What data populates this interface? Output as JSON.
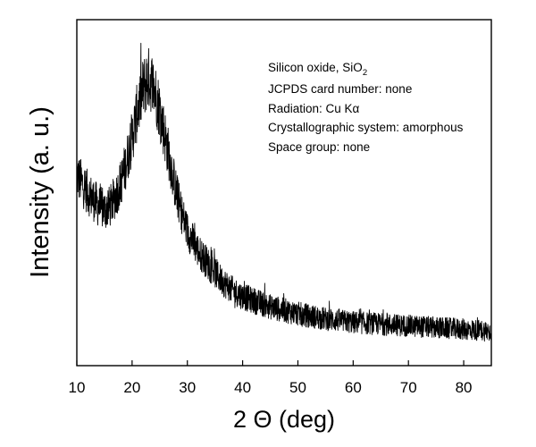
{
  "chart_data": {
    "type": "line",
    "xlabel": "2 Θ (deg)",
    "ylabel": "Intensity (a. u.)",
    "xlim": [
      10,
      85
    ],
    "ylim": [
      0,
      100
    ],
    "x_ticks": [
      10,
      20,
      30,
      40,
      50,
      60,
      70,
      80
    ],
    "y_tick_labels": false,
    "grid": false,
    "legend": "none",
    "annotation_lines": [
      {
        "text": "Silicon oxide, SiO",
        "subscript": "2"
      },
      {
        "text": "JCPDS card number: none"
      },
      {
        "text": "Radiation: Cu Kα"
      },
      {
        "text": "Crystallographic system: amorphous"
      },
      {
        "text": "Space group: none"
      }
    ],
    "series": [
      {
        "x": [
          10,
          12,
          14,
          15,
          16,
          17,
          18,
          19,
          20,
          21,
          22,
          22.5,
          23,
          23.5,
          24,
          25,
          26,
          27,
          28,
          29,
          30,
          32,
          34,
          36,
          38,
          40,
          45,
          50,
          55,
          60,
          65,
          70,
          75,
          80,
          85
        ],
        "y": [
          55,
          50,
          46,
          45,
          46,
          49,
          53,
          59,
          66,
          74,
          80,
          82,
          83,
          82,
          80,
          74,
          66,
          58,
          50,
          44,
          39,
          33,
          29,
          25,
          22,
          20,
          17,
          15,
          13.5,
          12.5,
          12,
          11.5,
          11,
          10.5,
          10
        ]
      }
    ],
    "color": "#000000"
  }
}
